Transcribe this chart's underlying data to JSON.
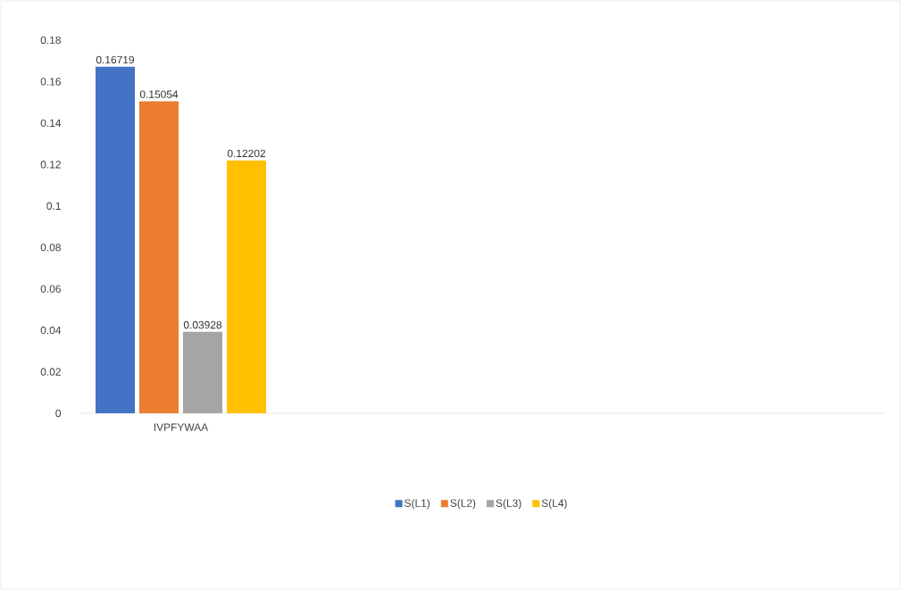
{
  "chart_data": {
    "type": "bar",
    "categories": [
      "IVPFYWAA",
      null,
      null,
      null
    ],
    "series": [
      {
        "name": "S(L1)",
        "color": "#4472c4",
        "values": [
          0.16719,
          null,
          null,
          null
        ]
      },
      {
        "name": "S(L2)",
        "color": "#ed7d31",
        "values": [
          0.15054,
          null,
          null,
          null
        ]
      },
      {
        "name": "S(L3)",
        "color": "#a5a5a5",
        "values": [
          0.03928,
          null,
          null,
          null
        ]
      },
      {
        "name": "S(L4)",
        "color": "#ffc000",
        "values": [
          0.12202,
          null,
          null,
          null
        ]
      }
    ],
    "ylim": [
      0,
      0.18
    ],
    "yticks": [
      0,
      0.02,
      0.04,
      0.06,
      0.08,
      0.1,
      0.12,
      0.14,
      0.16,
      0.18
    ],
    "data_labels": true,
    "legend": "bottom"
  }
}
